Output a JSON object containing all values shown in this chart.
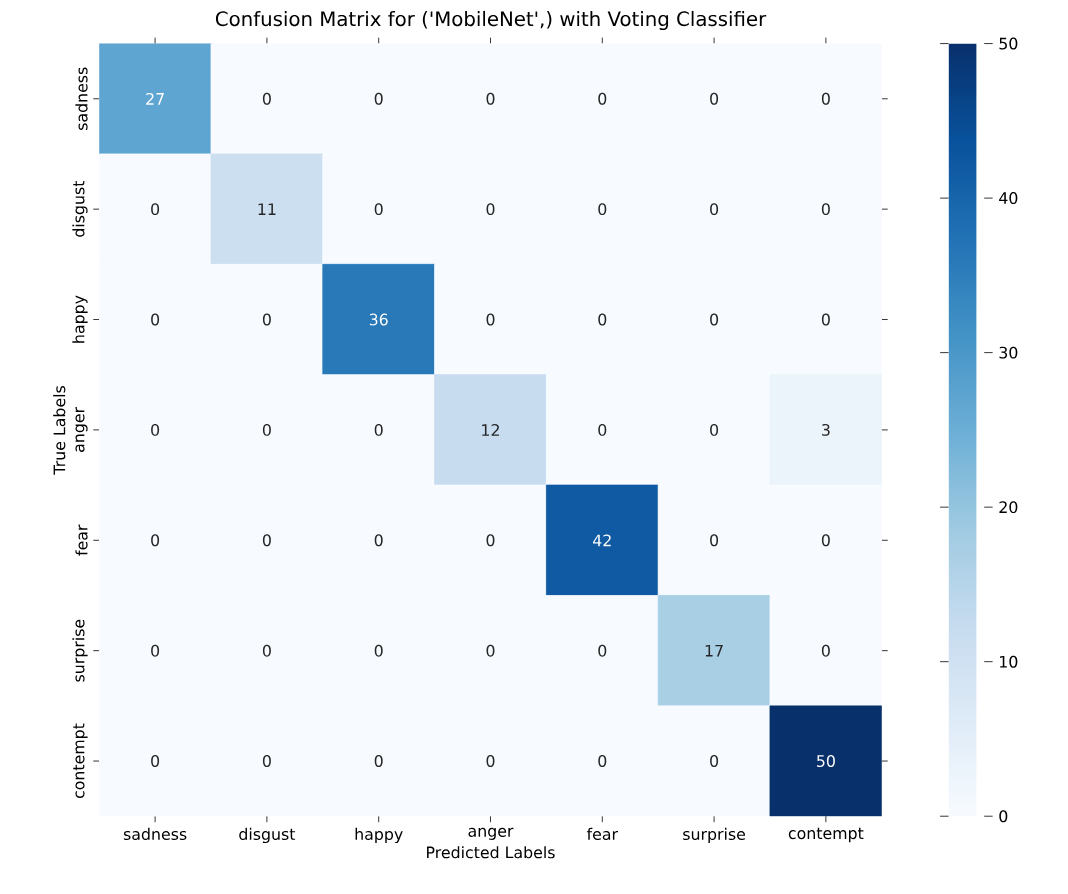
{
  "chart_data": {
    "type": "heatmap",
    "title": "Confusion Matrix for ('MobileNet',) with Voting Classifier",
    "xlabel": "Predicted Labels",
    "ylabel": "True Labels",
    "categories": [
      "sadness",
      "disgust",
      "happy",
      "anger",
      "fear",
      "surprise",
      "contempt"
    ],
    "y_categories": [
      "sadness",
      "disgust",
      "happy",
      "anger",
      "fear",
      "surprise",
      "contempt"
    ],
    "cells": [
      [
        27,
        0,
        0,
        0,
        0,
        0,
        0
      ],
      [
        0,
        11,
        0,
        0,
        0,
        0,
        0
      ],
      [
        0,
        0,
        36,
        0,
        0,
        0,
        0
      ],
      [
        0,
        0,
        0,
        12,
        0,
        0,
        3
      ],
      [
        0,
        0,
        0,
        0,
        42,
        0,
        0
      ],
      [
        0,
        0,
        0,
        0,
        0,
        17,
        0
      ],
      [
        0,
        0,
        0,
        0,
        0,
        0,
        50
      ]
    ],
    "data_labels": true,
    "clim": [
      0,
      50
    ],
    "cticks": [
      0,
      10,
      20,
      30,
      40,
      50
    ]
  }
}
